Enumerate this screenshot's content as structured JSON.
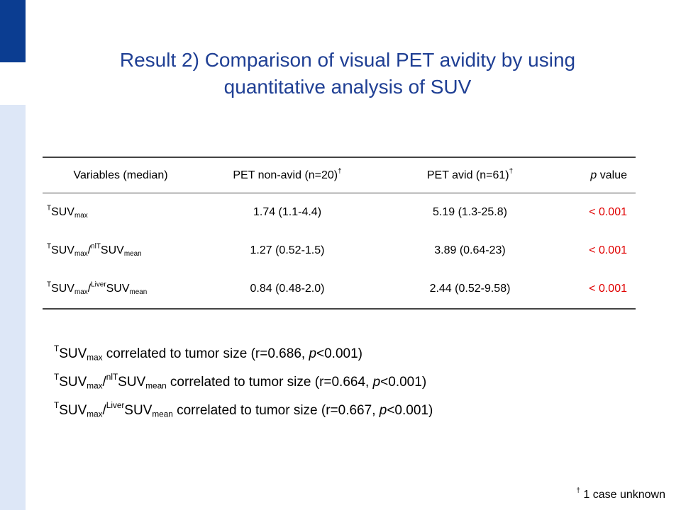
{
  "colors": {
    "title": "#1f3f94",
    "accent_bar": "#0b3d91",
    "accent_bar_light": "#dde7f7",
    "significant": "#e00000"
  },
  "title_line1": "Result 2) Comparison of visual PET avidity by using",
  "title_line2": "quantitative analysis of SUV",
  "table": {
    "headers": {
      "variables": "Variables (median)",
      "non_avid": "PET non-avid (n=20)",
      "avid": "PET avid (n=61)",
      "dagger": "†",
      "p_italic": "p",
      "p_rest": " value"
    },
    "rows": [
      {
        "var": {
          "sup1": "T",
          "base1": "SUV",
          "sub1": "max"
        },
        "non_avid": "1.74 (1.1-4.4)",
        "avid": "5.19 (1.3-25.8)",
        "p": "< 0.001"
      },
      {
        "var": {
          "sup1": "T",
          "base1": "SUV",
          "sub1": "max",
          "slash": "/",
          "sup2": "nlT",
          "base2": "SUV",
          "sub2": "mean"
        },
        "non_avid": "1.27 (0.52-1.5)",
        "avid": "3.89 (0.64-23)",
        "p": "< 0.001"
      },
      {
        "var": {
          "sup1": "T",
          "base1": "SUV",
          "sub1": "max",
          "slash": "/",
          "sup2": "Liver",
          "base2": "SUV",
          "sub2": "mean"
        },
        "non_avid": "0.84 (0.48-2.0)",
        "avid": "2.44 (0.52-9.58)",
        "p": "< 0.001"
      }
    ]
  },
  "statements": [
    {
      "sup1": "T",
      "base1": "SUV",
      "sub1": "max",
      "text": " correlated to tumor size (r=0.686, ",
      "p": "p",
      "tail": "<0.001)"
    },
    {
      "sup1": "T",
      "base1": "SUV",
      "sub1": "max",
      "slash": "/",
      "sup2": "nlT",
      "base2": "SUV",
      "sub2": "mean",
      "text": " correlated to tumor size (r=0.664, ",
      "p": "p",
      "tail": "<0.001)"
    },
    {
      "sup1": "T",
      "base1": "SUV",
      "sub1": "max",
      "slash": "/",
      "sup2": "Liver",
      "base2": "SUV",
      "sub2": "mean",
      "text": " correlated to tumor size (r=0.667, ",
      "p": "p",
      "tail": "<0.001)"
    }
  ],
  "footnote": {
    "dagger": "†",
    "text": " 1 case unknown"
  }
}
